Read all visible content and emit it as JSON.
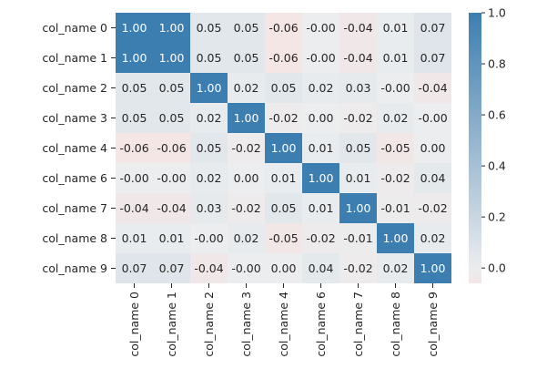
{
  "chart_data": {
    "type": "heatmap",
    "title": "",
    "xlabel": "",
    "ylabel": "",
    "row_labels": [
      "col_name 0",
      "col_name 1",
      "col_name 2",
      "col_name 3",
      "col_name 4",
      "col_name 6",
      "col_name 7",
      "col_name 8",
      "col_name 9"
    ],
    "col_labels": [
      "col_name 0",
      "col_name 1",
      "col_name 2",
      "col_name 3",
      "col_name 4",
      "col_name 6",
      "col_name 7",
      "col_name 8",
      "col_name 9"
    ],
    "matrix": [
      [
        1.0,
        1.0,
        0.05,
        0.05,
        -0.06,
        -0.0,
        -0.04,
        0.01,
        0.07
      ],
      [
        1.0,
        1.0,
        0.05,
        0.05,
        -0.06,
        -0.0,
        -0.04,
        0.01,
        0.07
      ],
      [
        0.05,
        0.05,
        1.0,
        0.02,
        0.05,
        0.02,
        0.03,
        -0.0,
        -0.04
      ],
      [
        0.05,
        0.05,
        0.02,
        1.0,
        -0.02,
        0.0,
        -0.02,
        0.02,
        -0.0
      ],
      [
        -0.06,
        -0.06,
        0.05,
        -0.02,
        1.0,
        0.01,
        0.05,
        -0.05,
        0.0
      ],
      [
        -0.0,
        -0.0,
        0.02,
        0.0,
        0.01,
        1.0,
        0.01,
        -0.02,
        0.04
      ],
      [
        -0.04,
        -0.04,
        0.03,
        -0.02,
        0.05,
        0.01,
        1.0,
        -0.01,
        -0.02
      ],
      [
        0.01,
        0.01,
        -0.0,
        0.02,
        -0.05,
        -0.02,
        -0.01,
        1.0,
        0.02
      ],
      [
        0.07,
        0.07,
        -0.04,
        -0.0,
        0.0,
        0.04,
        -0.02,
        0.02,
        1.0
      ]
    ],
    "annotation_format": "2 decimals",
    "colorbar": {
      "range": [
        -0.06,
        1.0
      ],
      "ticks": [
        "0.0",
        "0.2",
        "0.4",
        "0.6",
        "0.8",
        "1.0"
      ],
      "tick_values": [
        0.0,
        0.2,
        0.4,
        0.6,
        0.8,
        1.0
      ]
    },
    "colors": {
      "low": "#f3e6e5",
      "mid": "#ebedef",
      "high": "#3d7eb0",
      "annotation_light": "#ffffff",
      "annotation_dark": "#262626"
    },
    "grid": false,
    "legend": "colorbar right"
  }
}
